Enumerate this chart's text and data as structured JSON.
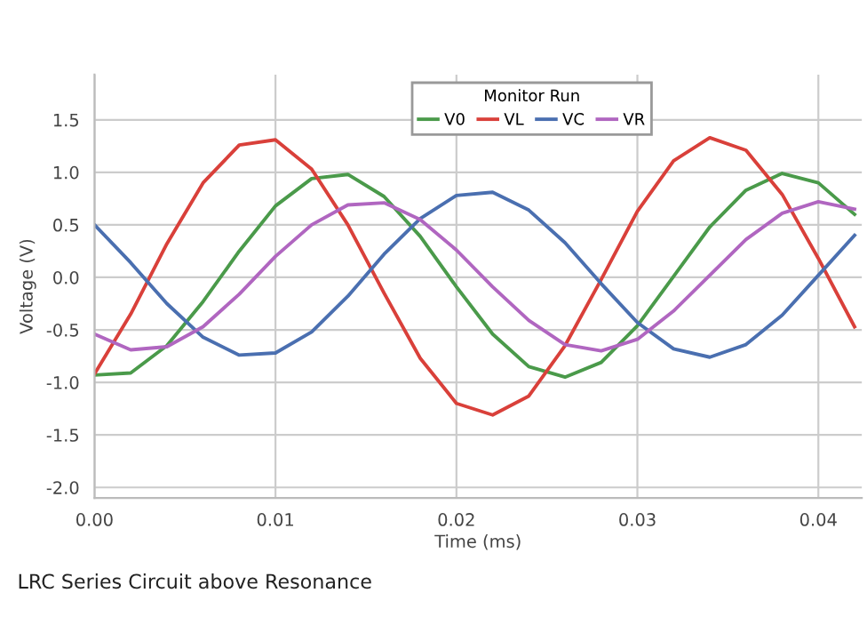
{
  "chart_data": {
    "type": "line",
    "title": "LRC Series Circuit above Resonance",
    "xlabel": "Time (ms)",
    "ylabel": "Voltage (V)",
    "legend_title": "Monitor Run",
    "x": [
      0,
      0.002,
      0.004,
      0.006,
      0.008,
      0.01,
      0.012,
      0.014,
      0.016,
      0.018,
      0.02,
      0.022,
      0.024,
      0.026,
      0.028,
      0.03,
      0.032,
      0.034,
      0.036,
      0.038,
      0.04,
      0.042
    ],
    "series": [
      {
        "name": "V0",
        "color": "#4a9a4a",
        "values": [
          -0.93,
          -0.91,
          -0.65,
          -0.23,
          0.25,
          0.68,
          0.94,
          0.98,
          0.77,
          0.39,
          -0.09,
          -0.54,
          -0.85,
          -0.95,
          -0.81,
          -0.46,
          0.01,
          0.48,
          0.83,
          0.99,
          0.9,
          0.6
        ]
      },
      {
        "name": "VL",
        "color": "#d9403a",
        "values": [
          -0.92,
          -0.35,
          0.32,
          0.9,
          1.26,
          1.31,
          1.03,
          0.5,
          -0.15,
          -0.77,
          -1.2,
          -1.31,
          -1.13,
          -0.65,
          -0.02,
          0.63,
          1.11,
          1.33,
          1.21,
          0.79,
          0.18,
          -0.47
        ]
      },
      {
        "name": "VC",
        "color": "#4a6fb0",
        "values": [
          0.5,
          0.14,
          -0.25,
          -0.57,
          -0.74,
          -0.72,
          -0.52,
          -0.18,
          0.22,
          0.56,
          0.78,
          0.81,
          0.64,
          0.33,
          -0.06,
          -0.43,
          -0.68,
          -0.76,
          -0.64,
          -0.36,
          0.02,
          0.4
        ]
      },
      {
        "name": "VR",
        "color": "#b066c0",
        "values": [
          -0.54,
          -0.69,
          -0.66,
          -0.47,
          -0.16,
          0.2,
          0.5,
          0.69,
          0.71,
          0.55,
          0.26,
          -0.09,
          -0.41,
          -0.64,
          -0.7,
          -0.59,
          -0.32,
          0.02,
          0.36,
          0.61,
          0.72,
          0.65
        ]
      }
    ],
    "xlim": [
      0,
      0.0424
    ],
    "xticks": [
      {
        "value": 0,
        "label": "0.00"
      },
      {
        "value": 0.01,
        "label": "0.01"
      },
      {
        "value": 0.02,
        "label": "0.02"
      },
      {
        "value": 0.03,
        "label": "0.03"
      },
      {
        "value": 0.04,
        "label": "0.04"
      }
    ],
    "ylim": [
      -2.1,
      1.93
    ],
    "yticks": [
      {
        "value": -2,
        "label": "-2.0"
      },
      {
        "value": -1.5,
        "label": "-1.5"
      },
      {
        "value": -1,
        "label": "-1.0"
      },
      {
        "value": -0.5,
        "label": "-0.5"
      },
      {
        "value": 0,
        "label": "0.0"
      },
      {
        "value": 0.5,
        "label": "0.5"
      },
      {
        "value": 1,
        "label": "1.0"
      },
      {
        "value": 1.5,
        "label": "1.5"
      }
    ],
    "grid": true,
    "legend": "top",
    "marker": "none",
    "line_style": "solid"
  }
}
